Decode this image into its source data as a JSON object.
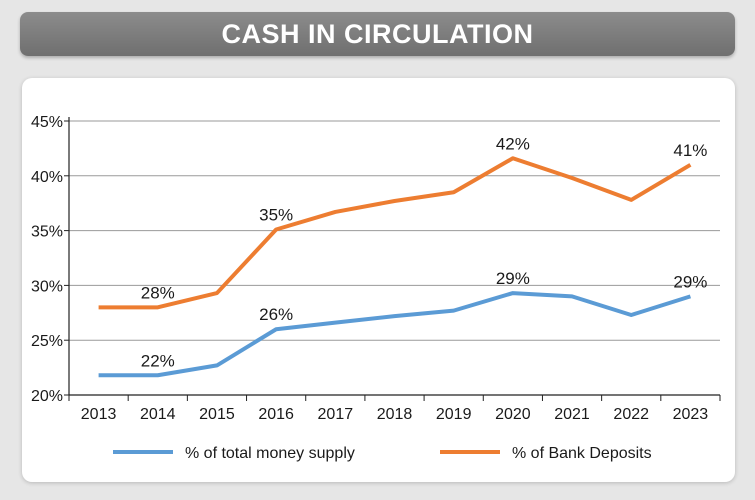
{
  "title": "CASH IN CIRCULATION",
  "chart_data": {
    "type": "line",
    "title": "CASH IN CIRCULATION",
    "categories": [
      "2013",
      "2014",
      "2015",
      "2016",
      "2017",
      "2018",
      "2019",
      "2020",
      "2021",
      "2022",
      "2023"
    ],
    "ylim": [
      20,
      45
    ],
    "yticks": [
      20,
      25,
      30,
      35,
      40,
      45
    ],
    "ytick_labels": [
      "20%",
      "25%",
      "30%",
      "35%",
      "40%",
      "45%"
    ],
    "grid": true,
    "legend_position": "bottom",
    "series": [
      {
        "name": "% of total money supply",
        "color": "#5b9bd5",
        "values": [
          21.8,
          21.8,
          22.7,
          26.0,
          26.6,
          27.2,
          27.7,
          29.3,
          29.0,
          27.3,
          29.0
        ],
        "labels": [
          {
            "index": 1,
            "text": "22%"
          },
          {
            "index": 3,
            "text": "26%"
          },
          {
            "index": 7,
            "text": "29%"
          },
          {
            "index": 10,
            "text": "29%"
          }
        ]
      },
      {
        "name": "% of Bank Deposits",
        "color": "#ed7d31",
        "values": [
          28.0,
          28.0,
          29.3,
          35.1,
          36.7,
          37.7,
          38.5,
          41.6,
          39.8,
          37.8,
          41.0
        ],
        "labels": [
          {
            "index": 1,
            "text": "28%"
          },
          {
            "index": 3,
            "text": "35%"
          },
          {
            "index": 7,
            "text": "42%"
          },
          {
            "index": 10,
            "text": "41%"
          }
        ]
      }
    ]
  }
}
